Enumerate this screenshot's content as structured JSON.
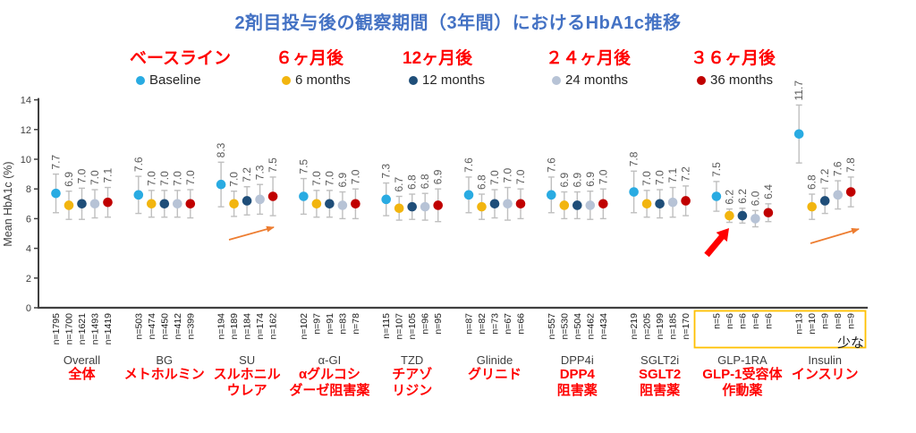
{
  "title": "2剤目投与後の観察期間（3年間）におけるHbA1c推移",
  "legend": {
    "items": [
      {
        "period_jp": "ベースライン",
        "label_en": "Baseline",
        "color": "#29ABE2"
      },
      {
        "period_jp": "６ヶ月後",
        "label_en": "6 months",
        "color": "#F2B50F"
      },
      {
        "period_jp": "12ヶ月後",
        "label_en": "12 months",
        "color": "#1F4E79"
      },
      {
        "period_jp": "２４ヶ月後",
        "label_en": "24 months",
        "color": "#B7C3D6"
      },
      {
        "period_jp": "３６ヶ月後",
        "label_en": "36 months",
        "color": "#C00000"
      }
    ]
  },
  "chart_data": {
    "type": "scatter",
    "title": "2剤目投与後の観察期間（3年間）におけるHbA1c推移",
    "ylabel": "Mean HbA1c (%)",
    "ylim": [
      0,
      14
    ],
    "yticks": [
      0,
      2,
      4,
      6,
      8,
      10,
      12,
      14
    ],
    "series_labels": [
      "Baseline",
      "6 months",
      "12 months",
      "24 months",
      "36 months"
    ],
    "series_colors": [
      "#29ABE2",
      "#F2B50F",
      "#1F4E79",
      "#B7C3D6",
      "#C00000"
    ],
    "groups": [
      {
        "label_en": "Overall",
        "label_jp": [
          "全体"
        ],
        "values": [
          7.7,
          6.9,
          7.0,
          7.0,
          7.1
        ],
        "err": [
          1.3,
          0.95,
          1.05,
          0.95,
          1.0
        ],
        "n": [
          "n=1795",
          "n=1700",
          "n=1621",
          "n=1493",
          "n=1419"
        ]
      },
      {
        "label_en": "BG",
        "label_jp": [
          "メトホルミン"
        ],
        "values": [
          7.6,
          7.0,
          7.0,
          7.0,
          7.0
        ],
        "err": [
          1.25,
          0.9,
          0.9,
          0.9,
          0.95
        ],
        "n": [
          "n=503",
          "n=474",
          "n=450",
          "n=412",
          "n=399"
        ]
      },
      {
        "label_en": "SU",
        "label_jp": [
          "スルホニル",
          "ウレア"
        ],
        "values": [
          8.3,
          7.0,
          7.2,
          7.3,
          7.5
        ],
        "err": [
          1.5,
          0.85,
          0.95,
          1.0,
          1.3
        ],
        "n": [
          "n=194",
          "n=189",
          "n=184",
          "n=174",
          "n=162"
        ]
      },
      {
        "label_en": "α-GI",
        "label_jp": [
          "αグルコシ",
          "ダーゼ阻害薬"
        ],
        "values": [
          7.5,
          7.0,
          7.0,
          6.9,
          7.0
        ],
        "err": [
          1.2,
          0.9,
          0.9,
          0.9,
          1.0
        ],
        "n": [
          "n=102",
          "n=97",
          "n=91",
          "n=83",
          "n=78"
        ]
      },
      {
        "label_en": "TZD",
        "label_jp": [
          "チアゾ",
          "リジン"
        ],
        "values": [
          7.3,
          6.7,
          6.8,
          6.8,
          6.9
        ],
        "err": [
          1.1,
          0.8,
          0.85,
          0.9,
          1.1
        ],
        "n": [
          "n=115",
          "n=107",
          "n=105",
          "n=96",
          "n=95"
        ]
      },
      {
        "label_en": "Glinide",
        "label_jp": [
          "グリニド"
        ],
        "values": [
          7.6,
          6.8,
          7.0,
          7.0,
          7.0
        ],
        "err": [
          1.2,
          0.85,
          0.95,
          1.1,
          1.0
        ],
        "n": [
          "n=87",
          "n=82",
          "n=73",
          "n=67",
          "n=66"
        ]
      },
      {
        "label_en": "DPP4i",
        "label_jp": [
          "DPP4",
          "阻害薬"
        ],
        "values": [
          7.6,
          6.9,
          6.9,
          6.9,
          7.0
        ],
        "err": [
          1.2,
          0.9,
          0.9,
          0.95,
          1.0
        ],
        "n": [
          "n=557",
          "n=530",
          "n=504",
          "n=462",
          "n=434"
        ]
      },
      {
        "label_en": "SGLT2i",
        "label_jp": [
          "SGLT2",
          "阻害薬"
        ],
        "values": [
          7.8,
          7.0,
          7.0,
          7.1,
          7.2
        ],
        "err": [
          1.4,
          0.9,
          0.95,
          1.0,
          1.0
        ],
        "n": [
          "n=219",
          "n=205",
          "n=199",
          "n=185",
          "n=170"
        ]
      },
      {
        "label_en": "GLP-1RA",
        "label_jp": [
          "GLP-1受容体",
          "作動薬"
        ],
        "values": [
          7.5,
          6.2,
          6.2,
          6.0,
          6.4
        ],
        "err": [
          1.0,
          0.45,
          0.5,
          0.55,
          0.6
        ],
        "n": [
          "n=5",
          "n=6",
          "n=6",
          "n=6",
          "n=6"
        ]
      },
      {
        "label_en": "Insulin",
        "label_jp": [
          "インスリン"
        ],
        "values": [
          11.7,
          6.8,
          7.2,
          7.6,
          7.8
        ],
        "err": [
          1.95,
          0.85,
          0.85,
          0.95,
          1.0
        ],
        "n": [
          "n=13",
          "n=10",
          "n=9",
          "n=8",
          "n=9"
        ]
      }
    ],
    "annotations": {
      "low_n_box_groups": [
        "GLP-1RA",
        "Insulin"
      ],
      "low_n_note": "少な",
      "arrows": [
        {
          "name": "trend-arrow-su",
          "style": "thin-orange"
        },
        {
          "name": "highlight-arrow-glp1ra",
          "style": "thick-red"
        },
        {
          "name": "trend-arrow-insulin",
          "style": "thin-orange"
        }
      ]
    }
  },
  "colors": {
    "title": "#4472C4",
    "jp_red": "#FF0000",
    "axis": "#404040",
    "whisker": "#BFBFBF",
    "value_label": "#595959",
    "n_label": "#1A1A1A",
    "group_label_en": "#404040",
    "highlight_box": "#FFC000",
    "orange_arrow": "#ED7D31",
    "red_arrow": "#FF0000"
  }
}
